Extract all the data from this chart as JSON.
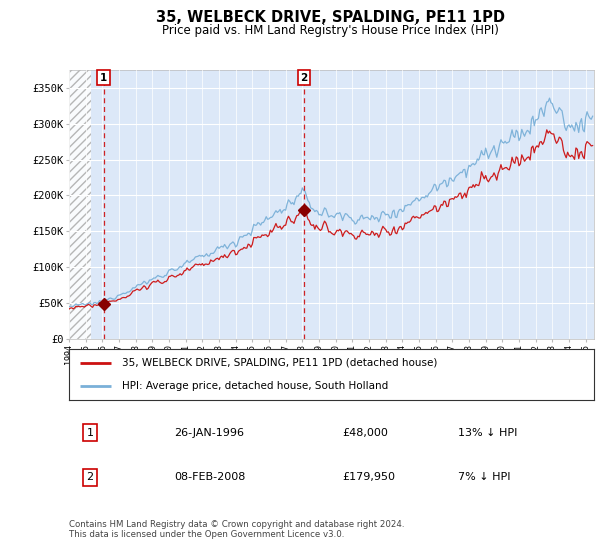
{
  "title": "35, WELBECK DRIVE, SPALDING, PE11 1PD",
  "subtitle": "Price paid vs. HM Land Registry's House Price Index (HPI)",
  "hpi_label": "HPI: Average price, detached house, South Holland",
  "property_label": "35, WELBECK DRIVE, SPALDING, PE11 1PD (detached house)",
  "transaction1_date": "26-JAN-1996",
  "transaction1_price": "£48,000",
  "transaction1_hpi": "13% ↓ HPI",
  "transaction2_date": "08-FEB-2008",
  "transaction2_price": "£179,950",
  "transaction2_hpi": "7% ↓ HPI",
  "footer": "Contains HM Land Registry data © Crown copyright and database right 2024.\nThis data is licensed under the Open Government Licence v3.0.",
  "ylim": [
    0,
    375000
  ],
  "yticks": [
    0,
    50000,
    100000,
    150000,
    200000,
    250000,
    300000,
    350000
  ],
  "ytick_labels": [
    "£0",
    "£50K",
    "£100K",
    "£150K",
    "£200K",
    "£250K",
    "£300K",
    "£350K"
  ],
  "plot_bg": "#dce8f8",
  "hpi_color": "#7ab0d8",
  "property_color": "#cc1111",
  "vline_color": "#cc0000",
  "marker_color": "#880000",
  "transaction1_x": 1996.08,
  "transaction2_x": 2008.1,
  "transaction1_y": 48000,
  "transaction2_y": 179950,
  "xmin": 1994,
  "xmax": 2025.5,
  "hatch_end": 1995.3
}
